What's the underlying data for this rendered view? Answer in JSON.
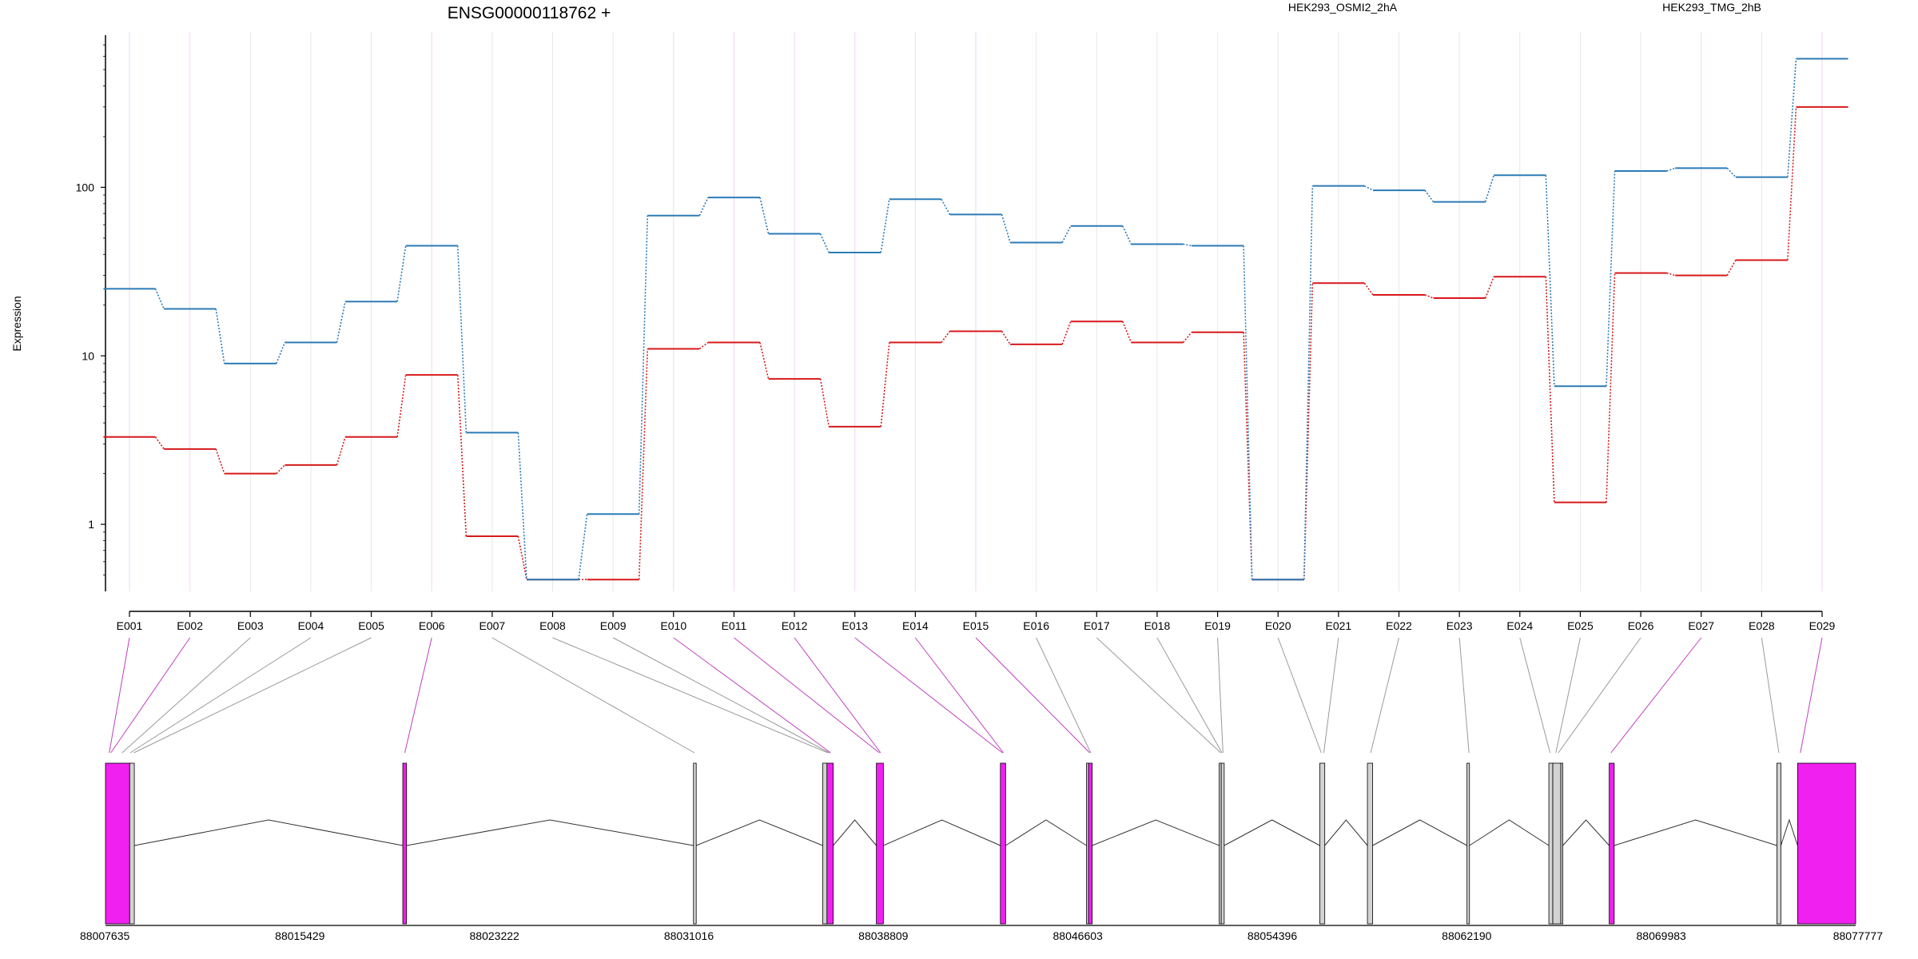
{
  "chart_data": [
    {
      "type": "line",
      "title": "ENSG00000118762 +",
      "ylabel": "Expression",
      "y_scale": "log",
      "yticks": [
        "1",
        "10",
        "100"
      ],
      "ytick_values": [
        1,
        10,
        100
      ],
      "categories": [
        "E001",
        "E002",
        "E003",
        "E004",
        "E005",
        "E006",
        "E007",
        "E008",
        "E009",
        "E010",
        "E011",
        "E012",
        "E013",
        "E014",
        "E015",
        "E016",
        "E017",
        "E018",
        "E019",
        "E020",
        "E021",
        "E022",
        "E023",
        "E024",
        "E025",
        "E026",
        "E027",
        "E028",
        "E029"
      ],
      "series": [
        {
          "name": "HEK293_OSMI2_2hA",
          "color": "#d7191c",
          "values": [
            3.3,
            2.8,
            2.0,
            2.25,
            3.3,
            7.7,
            0.85,
            0.47,
            0.47,
            11,
            12,
            7.3,
            3.8,
            12,
            14,
            11.7,
            16,
            12,
            13.8,
            0.47,
            27,
            23,
            22,
            29.5,
            1.35,
            31,
            30,
            37,
            300
          ]
        },
        {
          "name": "HEK293_TMG_2hB",
          "color": "#2c7bb6",
          "values": [
            25,
            19,
            9,
            12,
            21,
            45,
            3.5,
            0.47,
            1.15,
            68,
            87,
            53,
            41,
            85,
            69,
            47,
            59,
            46,
            45,
            0.47,
            102,
            96,
            82,
            118,
            6.6,
            125,
            130,
            115,
            580
          ]
        }
      ],
      "legend": "top",
      "grid": "vertical"
    },
    {
      "type": "gene-model",
      "coordinate_ticks": [
        "88007635",
        "88015429",
        "88023222",
        "88031016",
        "88038809",
        "88046603",
        "88054396",
        "88062190",
        "88069983",
        "88077777"
      ],
      "exons": [
        {
          "start": 88007635,
          "end": 88008605,
          "highlight": true
        },
        {
          "start": 88008605,
          "end": 88008790,
          "highlight": false
        },
        {
          "start": 88019550,
          "end": 88019700,
          "highlight": true
        },
        {
          "start": 88031200,
          "end": 88031310,
          "highlight": false
        },
        {
          "start": 88036380,
          "end": 88036550,
          "highlight": false
        },
        {
          "start": 88036550,
          "end": 88036800,
          "highlight": true
        },
        {
          "start": 88038530,
          "end": 88038810,
          "highlight": true
        },
        {
          "start": 88043500,
          "end": 88043710,
          "highlight": true
        },
        {
          "start": 88046950,
          "end": 88047030,
          "highlight": false
        },
        {
          "start": 88047030,
          "end": 88047180,
          "highlight": true
        },
        {
          "start": 88052270,
          "end": 88052350,
          "highlight": false
        },
        {
          "start": 88052350,
          "end": 88052470,
          "highlight": false
        },
        {
          "start": 88056300,
          "end": 88056500,
          "highlight": false
        },
        {
          "start": 88058210,
          "end": 88058420,
          "highlight": false
        },
        {
          "start": 88062200,
          "end": 88062300,
          "highlight": false
        },
        {
          "start": 88065480,
          "end": 88065640,
          "highlight": false
        },
        {
          "start": 88065640,
          "end": 88065960,
          "highlight": false
        },
        {
          "start": 88065960,
          "end": 88066040,
          "highlight": false
        },
        {
          "start": 88067900,
          "end": 88068100,
          "highlight": true
        },
        {
          "start": 88074620,
          "end": 88074780,
          "highlight": false
        },
        {
          "start": 88075450,
          "end": 88077777,
          "highlight": true
        }
      ],
      "bin_targets": [
        88007785,
        88007850,
        88008300,
        88008620,
        88008770,
        88019630,
        88031240,
        88036590,
        88036650,
        88036700,
        88038650,
        88038700,
        88043580,
        88043620,
        88047080,
        88047120,
        88052330,
        88052380,
        88052420,
        88056360,
        88056460,
        88058340,
        88062280,
        88065530,
        88065760,
        88065860,
        88067970,
        88074700,
        88075560
      ],
      "highlight_bins": [
        1,
        2,
        6,
        10,
        11,
        12,
        13,
        14,
        15,
        27,
        29
      ]
    }
  ]
}
